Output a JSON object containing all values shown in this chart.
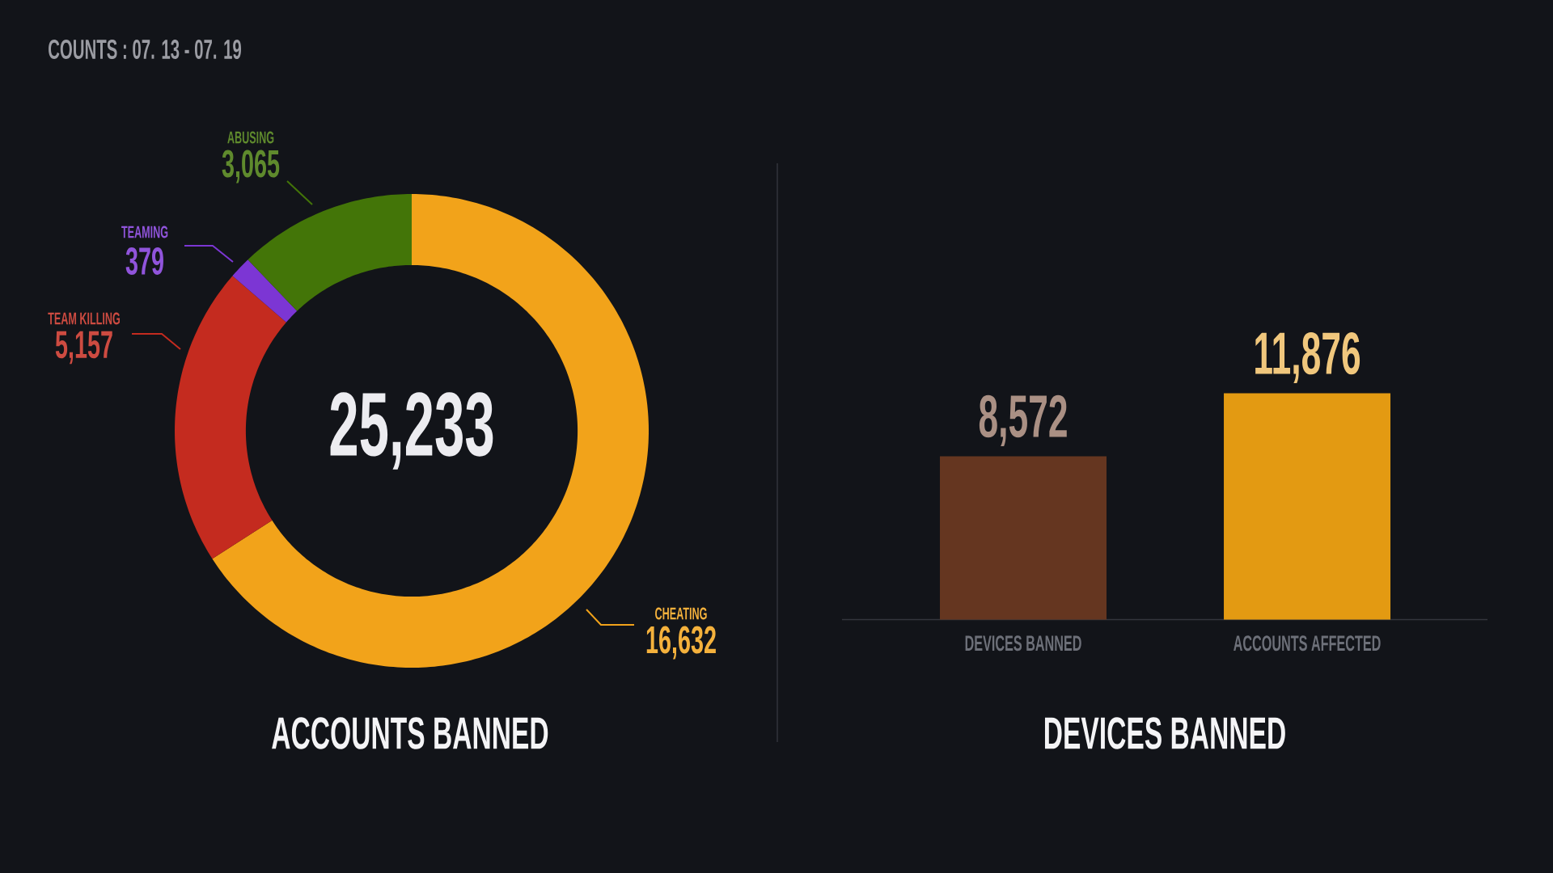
{
  "chart_data": [
    {
      "type": "donut",
      "title": "ACCOUNTS BANNED",
      "categories": [
        "CHEATING",
        "TEAM KILLING",
        "TEAMING",
        "ABUSING"
      ],
      "values": [
        16632,
        5157,
        379,
        3065
      ],
      "colors": [
        "#f2a31a",
        "#c42b1f",
        "#7c36d4",
        "#437508"
      ],
      "value_labels": [
        "16,632",
        "5,157",
        "379",
        "3,065"
      ],
      "annotations": [
        "25,233",
        "COUNTS : 07. 13 - 07. 19"
      ]
    },
    {
      "type": "bar",
      "title": "DEVICES BANNED",
      "categories": [
        "DEVICES BANNED",
        "ACCOUNTS AFFECTED"
      ],
      "values": [
        8572,
        11876
      ],
      "colors": [
        "#653620",
        "#e39a12"
      ],
      "value_labels": [
        "8,572",
        "11,876"
      ]
    }
  ]
}
